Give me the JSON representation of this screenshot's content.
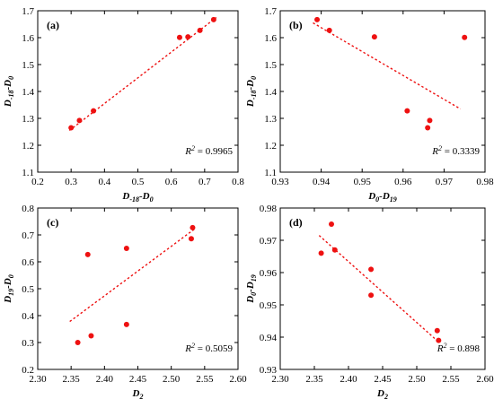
{
  "figure": {
    "background": "#ffffff",
    "point_color": "#ee1111",
    "trend_color": "#ee1111"
  },
  "chart_data": [
    {
      "type": "scatter",
      "panel": "(a)",
      "xlabel": "D_-18-D_0",
      "ylabel": "D_-18-D_0",
      "xlabel_parts": {
        "main": "D",
        "sub1": "-18",
        "mid": "-D",
        "sub2": "0"
      },
      "ylabel_parts": {
        "main": "D",
        "sub1": "-18",
        "mid": "-D",
        "sub2": "0"
      },
      "xlim": [
        0.2,
        0.8
      ],
      "ylim": [
        1.1,
        1.7
      ],
      "xticks": [
        "0.2",
        "0.3",
        "0.4",
        "0.5",
        "0.6",
        "0.7",
        "0.8"
      ],
      "yticks": [
        "1.1",
        "1.2",
        "1.3",
        "1.4",
        "1.5",
        "1.6",
        "1.7"
      ],
      "x": [
        0.3,
        0.325,
        0.367,
        0.625,
        0.65,
        0.686,
        0.727
      ],
      "y": [
        1.265,
        1.292,
        1.328,
        1.601,
        1.603,
        1.627,
        1.667
      ],
      "trend": {
        "x": [
          0.295,
          0.735
        ],
        "y": [
          1.255,
          1.675
        ]
      },
      "r2": "= 0.9965",
      "r2_position": "bottom-right"
    },
    {
      "type": "scatter",
      "panel": "(b)",
      "xlabel": "D_0-D_19",
      "ylabel": "D_-18-D_0",
      "xlabel_parts": {
        "main": "D",
        "sub1": "0",
        "mid": "-D",
        "sub2": "19"
      },
      "ylabel_parts": {
        "main": "D",
        "sub1": "-18",
        "mid": "-D",
        "sub2": "0"
      },
      "xlim": [
        0.93,
        0.98
      ],
      "ylim": [
        1.1,
        1.7
      ],
      "xticks": [
        "0.93",
        "0.94",
        "0.95",
        "0.96",
        "0.97",
        "0.98"
      ],
      "yticks": [
        "1.1",
        "1.2",
        "1.3",
        "1.4",
        "1.5",
        "1.6",
        "1.7"
      ],
      "x": [
        0.939,
        0.942,
        0.953,
        0.975,
        0.961,
        0.9665,
        0.966
      ],
      "y": [
        1.667,
        1.627,
        1.603,
        1.601,
        1.328,
        1.292,
        1.265
      ],
      "trend": {
        "x": [
          0.938,
          0.974
        ],
        "y": [
          1.655,
          1.335
        ]
      },
      "r2": "= 0.3339",
      "r2_position": "bottom-right"
    },
    {
      "type": "scatter",
      "panel": "(c)",
      "xlabel": "D_2",
      "ylabel": "D_19-D_0",
      "xlabel_parts": {
        "main": "D",
        "sub1": "2",
        "mid": "",
        "sub2": ""
      },
      "ylabel_parts": {
        "main": "D",
        "sub1": "19",
        "mid": "-D",
        "sub2": "0"
      },
      "xlim": [
        2.3,
        2.6
      ],
      "ylim": [
        0.2,
        0.8
      ],
      "xticks": [
        "2.30",
        "2.35",
        "2.40",
        "2.45",
        "2.50",
        "2.55",
        "2.60"
      ],
      "yticks": [
        "0.2",
        "0.3",
        "0.4",
        "0.5",
        "0.6",
        "0.7",
        "0.8"
      ],
      "x": [
        2.36,
        2.375,
        2.38,
        2.433,
        2.433,
        2.53,
        2.532
      ],
      "y": [
        0.3,
        0.627,
        0.325,
        0.65,
        0.367,
        0.686,
        0.727
      ],
      "trend": {
        "x": [
          2.348,
          2.535
        ],
        "y": [
          0.378,
          0.722
        ]
      },
      "r2": "= 0.5059",
      "r2_position": "bottom-right"
    },
    {
      "type": "scatter",
      "panel": "(d)",
      "xlabel": "D_2",
      "ylabel": "D_0-D_19",
      "xlabel_parts": {
        "main": "D",
        "sub1": "2",
        "mid": "",
        "sub2": ""
      },
      "ylabel_parts": {
        "main": "D",
        "sub1": "0",
        "mid": "-D",
        "sub2": "19"
      },
      "xlim": [
        2.3,
        2.6
      ],
      "ylim": [
        0.93,
        0.98
      ],
      "xticks": [
        "2.30",
        "2.35",
        "2.40",
        "2.45",
        "2.50",
        "2.55",
        "2.60"
      ],
      "yticks": [
        "0.93",
        "0.94",
        "0.95",
        "0.96",
        "0.97",
        "0.98"
      ],
      "x": [
        2.36,
        2.375,
        2.38,
        2.433,
        2.433,
        2.53,
        2.532
      ],
      "y": [
        0.966,
        0.975,
        0.967,
        0.961,
        0.953,
        0.942,
        0.939
      ],
      "trend": {
        "x": [
          2.357,
          2.532
        ],
        "y": [
          0.9715,
          0.9385
        ]
      },
      "r2": "= 0.898",
      "r2_position": "bottom-right"
    }
  ]
}
